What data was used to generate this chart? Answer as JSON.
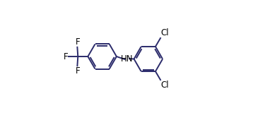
{
  "background_color": "#ffffff",
  "line_color": "#2b2b6b",
  "line_width": 1.4,
  "font_size": 8.5,
  "figsize": [
    3.58,
    1.6
  ],
  "dpi": 100,
  "xlim": [
    0.0,
    1.0
  ],
  "ylim": [
    0.05,
    0.95
  ]
}
